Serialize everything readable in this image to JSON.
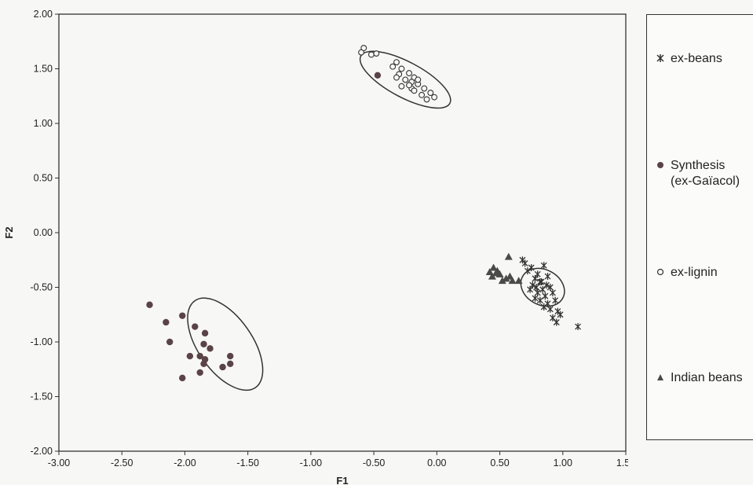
{
  "chart_data": {
    "type": "scatter",
    "xlabel": "F1",
    "ylabel": "F2",
    "xlim": [
      -3.0,
      1.5
    ],
    "ylim": [
      -2.0,
      2.0
    ],
    "xticks": [
      "-3.00",
      "-2.50",
      "-2.00",
      "-1.50",
      "-1.00",
      "-0.50",
      "0.00",
      "0.50",
      "1.00",
      "1.50"
    ],
    "yticks": [
      "2.00",
      "1.50",
      "1.00",
      "0.50",
      "0.00",
      "-0.50",
      "-1.00",
      "-1.50",
      "-2.00"
    ],
    "grid": false,
    "legend_position": "right",
    "series": [
      {
        "name": "ex-beans",
        "marker": "asterisk",
        "points": [
          [
            0.68,
            -0.25
          ],
          [
            0.75,
            -0.32
          ],
          [
            0.8,
            -0.38
          ],
          [
            0.85,
            -0.3
          ],
          [
            0.72,
            -0.35
          ],
          [
            0.78,
            -0.42
          ],
          [
            0.82,
            -0.45
          ],
          [
            0.88,
            -0.4
          ],
          [
            0.76,
            -0.48
          ],
          [
            0.84,
            -0.52
          ],
          [
            0.9,
            -0.5
          ],
          [
            0.8,
            -0.55
          ],
          [
            0.86,
            -0.58
          ],
          [
            0.92,
            -0.55
          ],
          [
            0.74,
            -0.52
          ],
          [
            0.82,
            -0.62
          ],
          [
            0.88,
            -0.65
          ],
          [
            0.94,
            -0.62
          ],
          [
            0.78,
            -0.6
          ],
          [
            0.85,
            -0.68
          ],
          [
            0.9,
            -0.7
          ],
          [
            0.96,
            -0.72
          ],
          [
            0.83,
            -0.45
          ],
          [
            0.87,
            -0.48
          ],
          [
            0.92,
            -0.78
          ],
          [
            0.95,
            -0.82
          ],
          [
            0.98,
            -0.75
          ],
          [
            1.12,
            -0.86
          ],
          [
            0.7,
            -0.28
          ],
          [
            0.79,
            -0.5
          ]
        ]
      },
      {
        "name": "Synthesis\n(ex-Gaïacol)",
        "marker": "filled-circle",
        "points": [
          [
            -0.47,
            1.44
          ],
          [
            -2.28,
            -0.66
          ],
          [
            -2.15,
            -0.82
          ],
          [
            -2.02,
            -0.76
          ],
          [
            -2.12,
            -1.0
          ],
          [
            -1.92,
            -0.86
          ],
          [
            -1.84,
            -0.92
          ],
          [
            -1.85,
            -1.02
          ],
          [
            -1.8,
            -1.06
          ],
          [
            -1.96,
            -1.13
          ],
          [
            -1.88,
            -1.13
          ],
          [
            -1.84,
            -1.16
          ],
          [
            -1.85,
            -1.2
          ],
          [
            -1.64,
            -1.13
          ],
          [
            -1.64,
            -1.2
          ],
          [
            -1.7,
            -1.23
          ],
          [
            -1.88,
            -1.28
          ],
          [
            -2.02,
            -1.33
          ]
        ]
      },
      {
        "name": "ex-lignin",
        "marker": "open-circle",
        "points": [
          [
            -0.58,
            1.69
          ],
          [
            -0.52,
            1.63
          ],
          [
            -0.6,
            1.65
          ],
          [
            -0.48,
            1.64
          ],
          [
            -0.32,
            1.56
          ],
          [
            -0.28,
            1.5
          ],
          [
            -0.35,
            1.52
          ],
          [
            -0.3,
            1.45
          ],
          [
            -0.22,
            1.46
          ],
          [
            -0.18,
            1.42
          ],
          [
            -0.2,
            1.38
          ],
          [
            -0.25,
            1.4
          ],
          [
            -0.15,
            1.36
          ],
          [
            -0.2,
            1.32
          ],
          [
            -0.28,
            1.34
          ],
          [
            -0.1,
            1.32
          ],
          [
            -0.05,
            1.28
          ],
          [
            -0.12,
            1.26
          ],
          [
            -0.02,
            1.24
          ],
          [
            -0.08,
            1.22
          ],
          [
            -0.18,
            1.3
          ],
          [
            -0.15,
            1.4
          ],
          [
            -0.22,
            1.35
          ],
          [
            -0.32,
            1.42
          ]
        ]
      },
      {
        "name": "Indian beans",
        "marker": "filled-triangle",
        "points": [
          [
            0.42,
            -0.36
          ],
          [
            0.45,
            -0.32
          ],
          [
            0.48,
            -0.35
          ],
          [
            0.5,
            -0.38
          ],
          [
            0.44,
            -0.4
          ],
          [
            0.55,
            -0.42
          ],
          [
            0.58,
            -0.4
          ],
          [
            0.6,
            -0.44
          ],
          [
            0.57,
            -0.22
          ],
          [
            0.65,
            -0.44
          ],
          [
            0.52,
            -0.44
          ],
          [
            0.47,
            -0.37
          ]
        ]
      }
    ],
    "ellipses": [
      {
        "center": [
          -1.68,
          -1.02
        ],
        "rx": 0.42,
        "ry": 0.45
      },
      {
        "center": [
          -0.25,
          1.4
        ],
        "rx": 0.4,
        "ry": 0.18
      },
      {
        "center": [
          0.84,
          -0.5
        ],
        "rx": 0.14,
        "ry": 0.38
      }
    ]
  },
  "legend": {
    "items": [
      {
        "label_line1": "ex-beans",
        "label_line2": "",
        "marker": "asterisk"
      },
      {
        "label_line1": "Synthesis",
        "label_line2": "(ex-Gaïacol)",
        "marker": "filled-circle"
      },
      {
        "label_line1": "ex-lignin",
        "label_line2": "",
        "marker": "open-circle"
      },
      {
        "label_line1": "Indian beans",
        "label_line2": "",
        "marker": "filled-triangle"
      }
    ]
  }
}
